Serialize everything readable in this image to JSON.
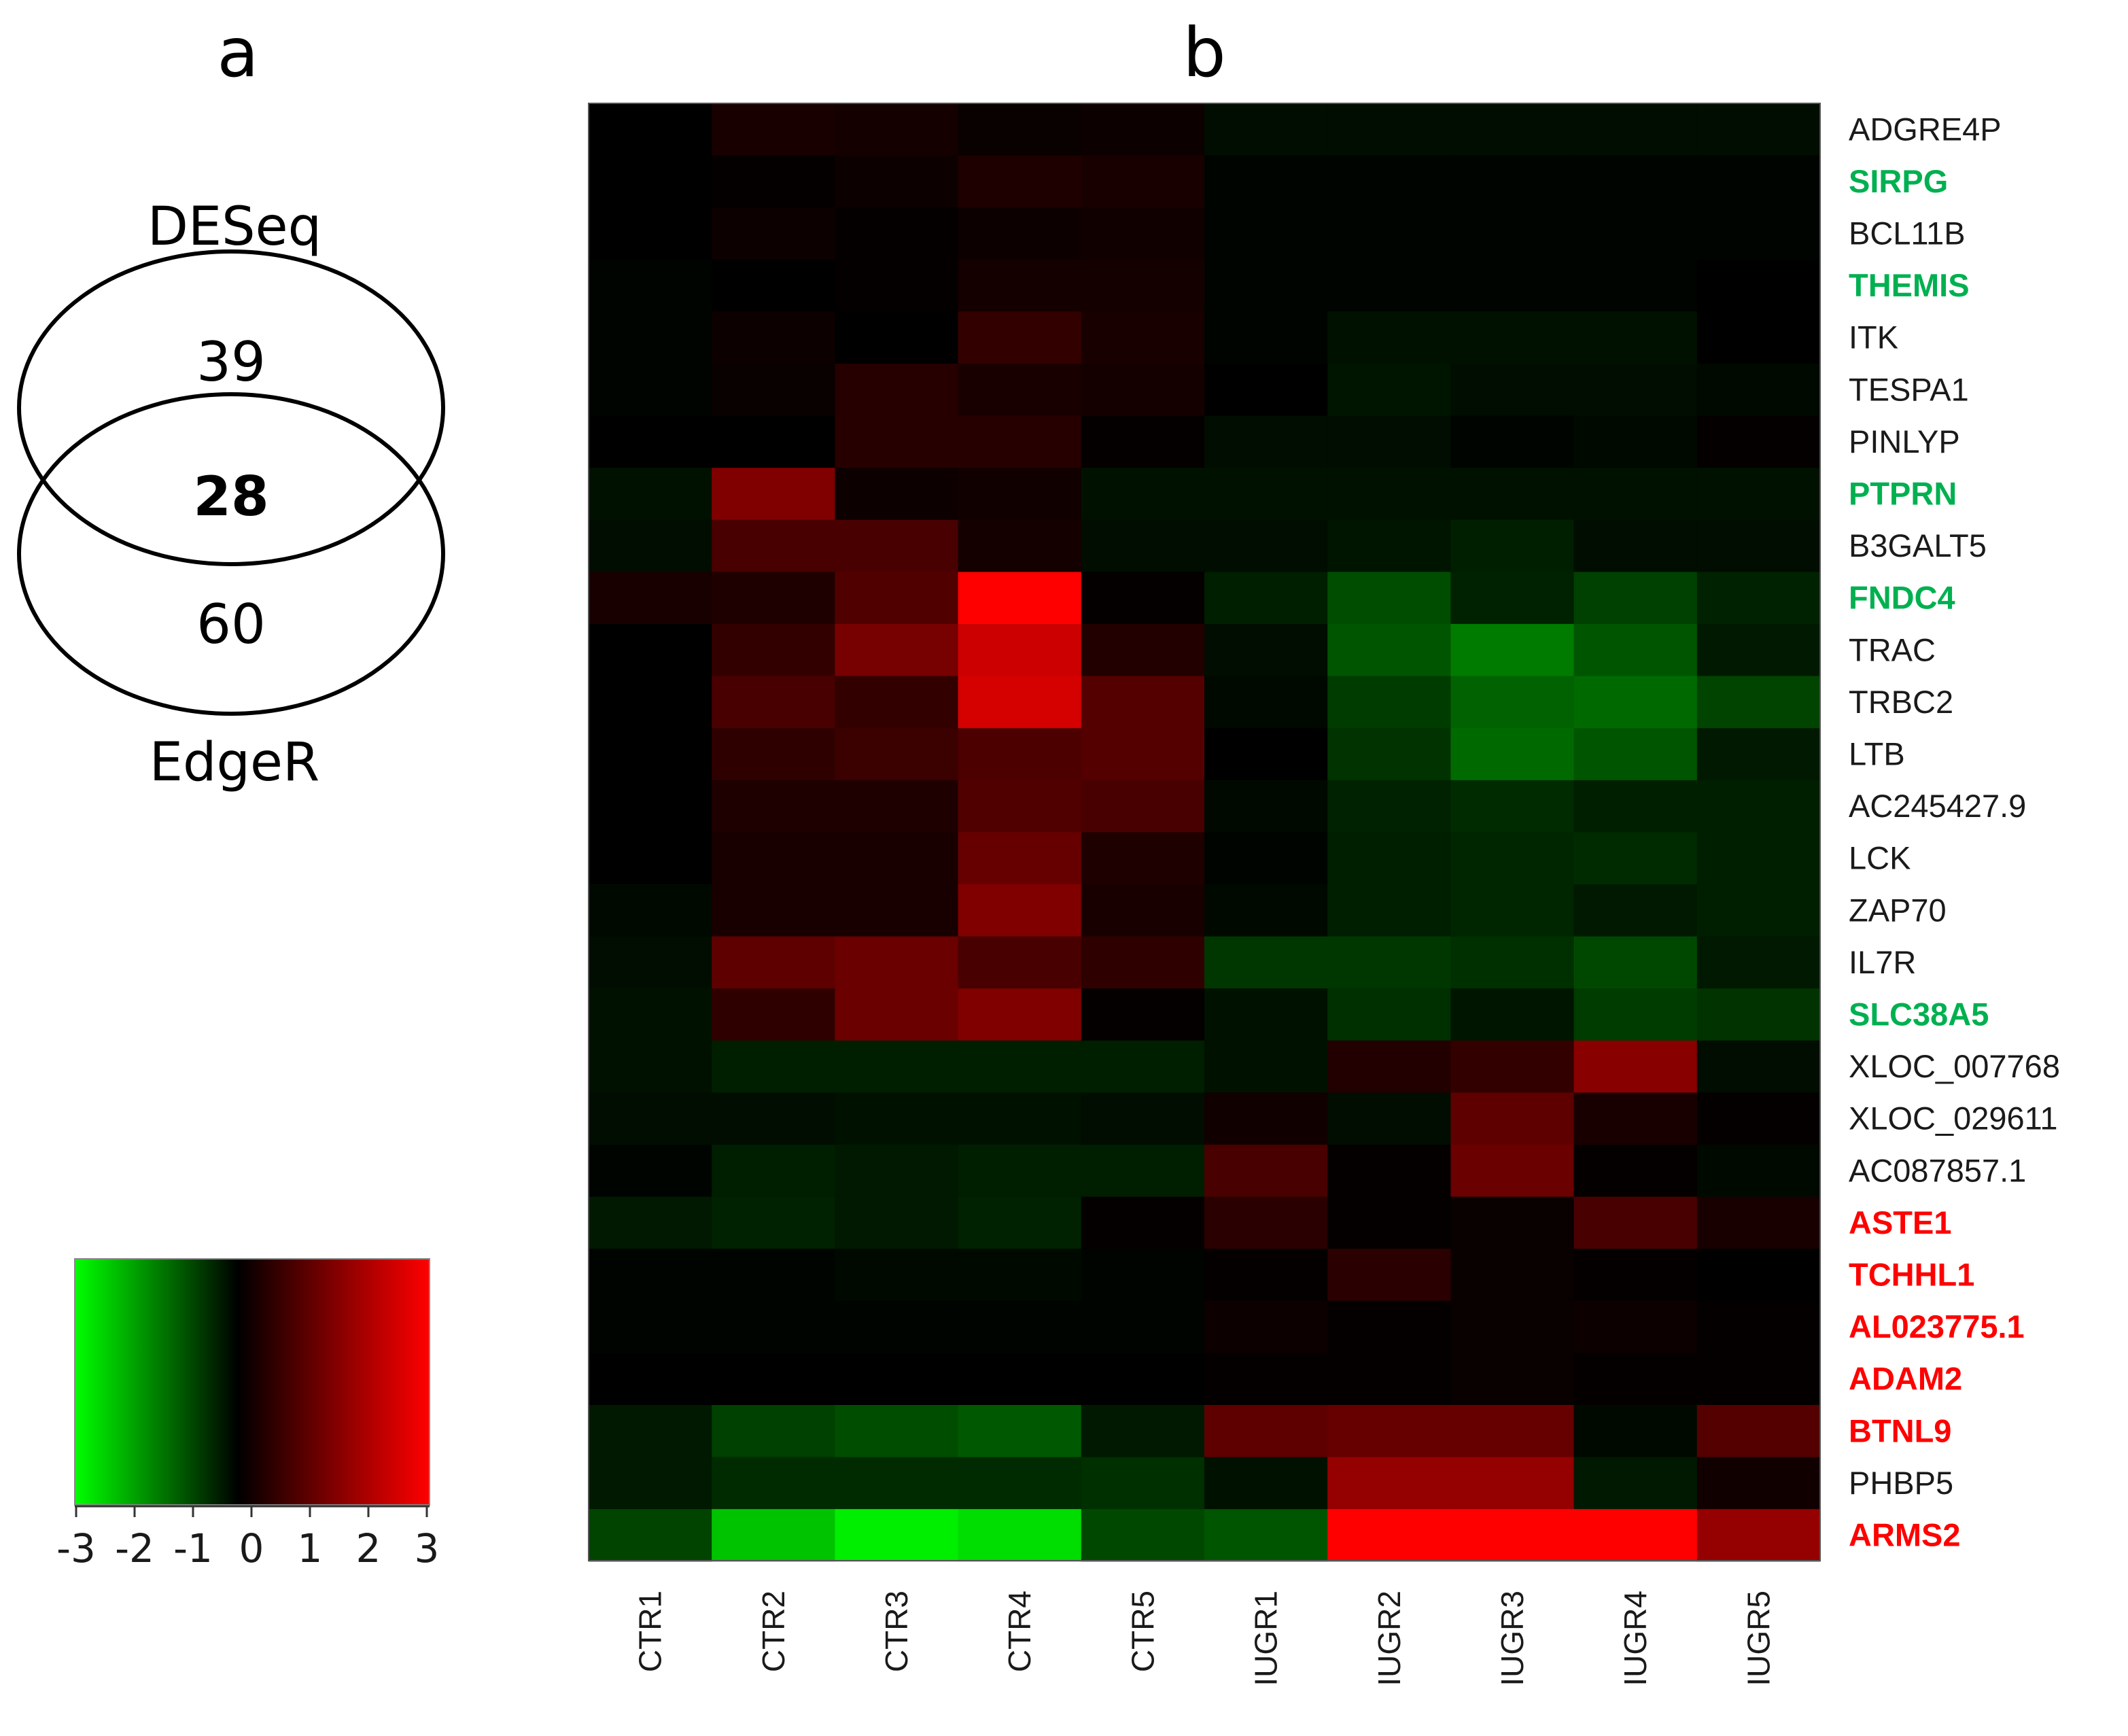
{
  "panels": {
    "a": "a",
    "b": "b"
  },
  "venn": {
    "top_label": "DESeq",
    "bottom_label": "EdgeR",
    "only_top": "39",
    "overlap": "28",
    "only_bottom": "60"
  },
  "colors": {
    "low": "#00ff00",
    "mid": "#000000",
    "high": "#ff0000",
    "label_default": "#1a1a1a",
    "label_up": "#00b050",
    "label_down": "#ff0000"
  },
  "color_scale": {
    "min": -3,
    "max": 3,
    "tick_labels": [
      "-3",
      "-2",
      "-1",
      "0",
      "1",
      "2",
      "3"
    ]
  },
  "chart_data": {
    "type": "heatmap",
    "title": "",
    "columns": [
      "CTR1",
      "CTR2",
      "CTR3",
      "CTR4",
      "CTR5",
      "IUGR1",
      "IUGR2",
      "IUGR3",
      "IUGR4",
      "IUGR5"
    ],
    "rows": [
      {
        "gene": "ADGRE4P",
        "highlight": "none",
        "values": [
          0.0,
          0.3,
          0.25,
          0.1,
          0.15,
          -0.15,
          -0.15,
          -0.15,
          -0.15,
          -0.15
        ]
      },
      {
        "gene": "SIRPG",
        "highlight": "green",
        "values": [
          0.0,
          0.05,
          0.15,
          0.35,
          0.3,
          -0.05,
          -0.05,
          -0.05,
          -0.05,
          -0.05
        ]
      },
      {
        "gene": "BCL11B",
        "highlight": "none",
        "values": [
          0.0,
          0.15,
          0.05,
          0.15,
          0.2,
          -0.05,
          -0.05,
          -0.05,
          -0.05,
          -0.05
        ]
      },
      {
        "gene": "THEMIS",
        "highlight": "green",
        "values": [
          -0.05,
          0.0,
          0.05,
          0.25,
          0.25,
          -0.05,
          -0.05,
          -0.05,
          -0.05,
          0.0
        ]
      },
      {
        "gene": "ITK",
        "highlight": "none",
        "values": [
          -0.05,
          0.15,
          0.0,
          0.6,
          0.3,
          -0.05,
          -0.2,
          -0.2,
          -0.2,
          0.0
        ]
      },
      {
        "gene": "TESPA1",
        "highlight": "none",
        "values": [
          -0.05,
          0.1,
          0.45,
          0.3,
          0.25,
          0.0,
          -0.25,
          -0.15,
          -0.15,
          -0.1
        ]
      },
      {
        "gene": "PINLYP",
        "highlight": "none",
        "values": [
          0.0,
          0.0,
          0.45,
          0.45,
          0.05,
          -0.15,
          -0.15,
          -0.05,
          -0.1,
          0.05
        ]
      },
      {
        "gene": "PTPRN",
        "highlight": "green",
        "values": [
          -0.2,
          1.5,
          0.15,
          0.2,
          -0.2,
          -0.2,
          -0.2,
          -0.2,
          -0.2,
          -0.2
        ]
      },
      {
        "gene": "B3GALT5",
        "highlight": "none",
        "values": [
          -0.15,
          0.85,
          0.85,
          0.25,
          -0.15,
          -0.15,
          -0.25,
          -0.35,
          -0.15,
          -0.15
        ]
      },
      {
        "gene": "FNDC4",
        "highlight": "green",
        "values": [
          0.3,
          0.35,
          0.95,
          3.0,
          0.05,
          -0.35,
          -0.9,
          -0.4,
          -0.75,
          -0.4
        ]
      },
      {
        "gene": "TRAC",
        "highlight": "none",
        "values": [
          0.0,
          0.6,
          1.4,
          2.4,
          0.4,
          -0.15,
          -1.0,
          -1.45,
          -1.0,
          -0.3
        ]
      },
      {
        "gene": "TRBC2",
        "highlight": "none",
        "values": [
          0.0,
          0.85,
          0.6,
          2.5,
          1.0,
          -0.1,
          -0.7,
          -1.15,
          -1.25,
          -0.8
        ]
      },
      {
        "gene": "LTB",
        "highlight": "none",
        "values": [
          0.0,
          0.55,
          0.7,
          0.9,
          1.0,
          0.0,
          -0.6,
          -1.25,
          -1.0,
          -0.3
        ]
      },
      {
        "gene": "AC245427.9",
        "highlight": "none",
        "values": [
          0.0,
          0.35,
          0.35,
          0.95,
          0.85,
          -0.1,
          -0.4,
          -0.5,
          -0.35,
          -0.35
        ]
      },
      {
        "gene": "LCK",
        "highlight": "none",
        "values": [
          0.0,
          0.3,
          0.3,
          1.2,
          0.35,
          -0.05,
          -0.35,
          -0.45,
          -0.5,
          -0.35
        ]
      },
      {
        "gene": "ZAP70",
        "highlight": "none",
        "values": [
          -0.1,
          0.3,
          0.3,
          1.5,
          0.3,
          -0.1,
          -0.35,
          -0.45,
          -0.3,
          -0.35
        ]
      },
      {
        "gene": "IL7R",
        "highlight": "none",
        "values": [
          -0.15,
          1.1,
          1.25,
          0.85,
          0.55,
          -0.65,
          -0.65,
          -0.55,
          -0.85,
          -0.3
        ]
      },
      {
        "gene": "SLC38A5",
        "highlight": "green",
        "values": [
          -0.2,
          0.55,
          1.25,
          1.5,
          0.05,
          -0.2,
          -0.55,
          -0.25,
          -0.7,
          -0.6
        ]
      },
      {
        "gene": "XLOC_007768",
        "highlight": "none",
        "values": [
          -0.2,
          -0.35,
          -0.35,
          -0.35,
          -0.35,
          -0.2,
          0.4,
          0.6,
          1.6,
          -0.15
        ]
      },
      {
        "gene": "XLOC_029611",
        "highlight": "none",
        "values": [
          -0.15,
          -0.15,
          -0.2,
          -0.2,
          -0.15,
          0.2,
          -0.15,
          1.1,
          0.3,
          0.05
        ]
      },
      {
        "gene": "AC087857.1",
        "highlight": "none",
        "values": [
          -0.05,
          -0.35,
          -0.3,
          -0.35,
          -0.35,
          0.85,
          0.05,
          1.25,
          0.05,
          -0.1
        ]
      },
      {
        "gene": "ASTE1",
        "highlight": "red",
        "values": [
          -0.3,
          -0.4,
          -0.3,
          -0.4,
          0.05,
          0.5,
          0.05,
          0.1,
          0.85,
          0.3
        ]
      },
      {
        "gene": "TCHHL1",
        "highlight": "red",
        "values": [
          -0.05,
          -0.05,
          -0.1,
          -0.1,
          -0.05,
          0.05,
          0.5,
          0.1,
          0.05,
          0.0
        ]
      },
      {
        "gene": "AL023775.1",
        "highlight": "red",
        "values": [
          -0.05,
          -0.05,
          -0.05,
          -0.05,
          -0.05,
          0.15,
          0.05,
          0.1,
          0.15,
          0.05
        ]
      },
      {
        "gene": "ADAM2",
        "highlight": "red",
        "values": [
          0.0,
          0.0,
          0.0,
          0.0,
          0.0,
          0.05,
          0.05,
          0.1,
          0.05,
          0.05
        ]
      },
      {
        "gene": "BTNL9",
        "highlight": "red",
        "values": [
          -0.3,
          -0.75,
          -0.9,
          -1.05,
          -0.3,
          1.1,
          1.2,
          1.2,
          -0.1,
          1.0
        ]
      },
      {
        "gene": "PHBP5",
        "highlight": "none",
        "values": [
          -0.3,
          -0.5,
          -0.5,
          -0.5,
          -0.55,
          -0.2,
          1.75,
          1.75,
          -0.3,
          0.2
        ]
      },
      {
        "gene": "ARMS2",
        "highlight": "red",
        "values": [
          -0.8,
          -2.3,
          -2.8,
          -2.6,
          -0.85,
          -1.0,
          3.0,
          3.0,
          3.0,
          1.75
        ]
      }
    ]
  }
}
